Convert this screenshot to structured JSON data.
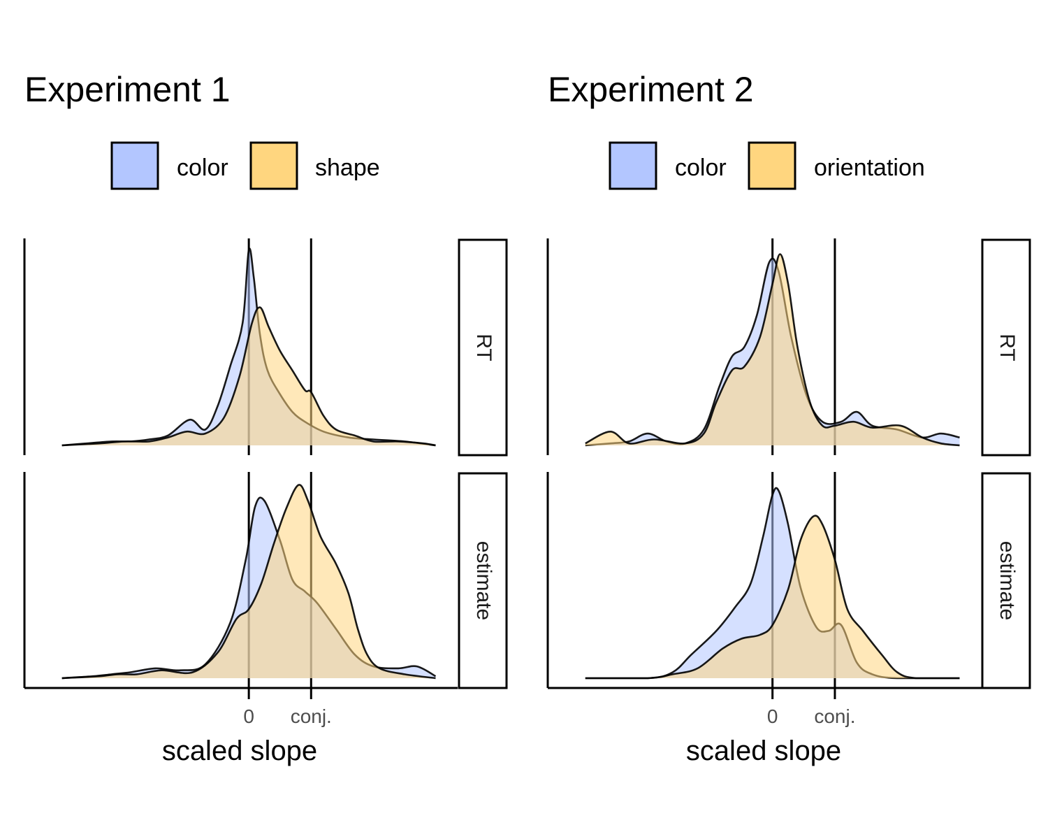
{
  "colors": {
    "color": "#b3c6ff",
    "feature": "#ffd67f",
    "outline": "#000000"
  },
  "chart_data": [
    {
      "type": "area",
      "title": "Experiment 1",
      "xlabel": "scaled slope",
      "xticks": [
        {
          "value": 0,
          "label": "0"
        },
        {
          "value": 1,
          "label": "conj."
        }
      ],
      "xlim": [
        -3.3,
        3.05
      ],
      "legend": {
        "position": "top",
        "entries": [
          "color",
          "shape"
        ]
      },
      "facets": [
        {
          "label": "RT",
          "ylim": [
            0,
            1.0
          ],
          "series": [
            {
              "name": "color",
              "color": "#b3c6ff",
              "points": [
                [
                  -3.0,
                  0
                ],
                [
                  -2.6,
                  0.01
                ],
                [
                  -2.2,
                  0.02
                ],
                [
                  -1.9,
                  0.02
                ],
                [
                  -1.6,
                  0.03
                ],
                [
                  -1.3,
                  0.05
                ],
                [
                  -0.95,
                  0.13
                ],
                [
                  -0.7,
                  0.08
                ],
                [
                  -0.5,
                  0.2
                ],
                [
                  -0.3,
                  0.4
                ],
                [
                  -0.1,
                  0.62
                ],
                [
                  0.0,
                  0.99
                ],
                [
                  0.08,
                  0.85
                ],
                [
                  0.18,
                  0.56
                ],
                [
                  0.3,
                  0.38
                ],
                [
                  0.5,
                  0.26
                ],
                [
                  0.7,
                  0.17
                ],
                [
                  0.9,
                  0.12
                ],
                [
                  1.2,
                  0.07
                ],
                [
                  1.6,
                  0.04
                ],
                [
                  2.0,
                  0.03
                ],
                [
                  2.5,
                  0.02
                ],
                [
                  3.0,
                  0
                ]
              ]
            },
            {
              "name": "shape",
              "color": "#ffd67f",
              "points": [
                [
                  -3.0,
                  0
                ],
                [
                  -2.4,
                  0.01
                ],
                [
                  -2.0,
                  0.02
                ],
                [
                  -1.6,
                  0.02
                ],
                [
                  -1.3,
                  0.04
                ],
                [
                  -1.0,
                  0.07
                ],
                [
                  -0.7,
                  0.06
                ],
                [
                  -0.4,
                  0.14
                ],
                [
                  -0.15,
                  0.35
                ],
                [
                  0.05,
                  0.62
                ],
                [
                  0.18,
                  0.7
                ],
                [
                  0.32,
                  0.6
                ],
                [
                  0.5,
                  0.48
                ],
                [
                  0.7,
                  0.38
                ],
                [
                  0.9,
                  0.28
                ],
                [
                  1.0,
                  0.27
                ],
                [
                  1.2,
                  0.15
                ],
                [
                  1.4,
                  0.08
                ],
                [
                  1.7,
                  0.05
                ],
                [
                  2.0,
                  0.02
                ],
                [
                  2.4,
                  0.02
                ],
                [
                  2.8,
                  0.01
                ],
                [
                  3.0,
                  0
                ]
              ]
            }
          ]
        },
        {
          "label": "estimate",
          "ylim": [
            0,
            1.0
          ],
          "series": [
            {
              "name": "color",
              "color": "#b3c6ff",
              "points": [
                [
                  -3.0,
                  0
                ],
                [
                  -2.5,
                  0.01
                ],
                [
                  -2.2,
                  0.02
                ],
                [
                  -1.9,
                  0.03
                ],
                [
                  -1.5,
                  0.05
                ],
                [
                  -1.1,
                  0.04
                ],
                [
                  -0.7,
                  0.07
                ],
                [
                  -0.3,
                  0.28
                ],
                [
                  -0.05,
                  0.6
                ],
                [
                  0.1,
                  0.87
                ],
                [
                  0.25,
                  0.9
                ],
                [
                  0.5,
                  0.7
                ],
                [
                  0.7,
                  0.5
                ],
                [
                  0.9,
                  0.44
                ],
                [
                  1.1,
                  0.38
                ],
                [
                  1.4,
                  0.25
                ],
                [
                  1.7,
                  0.12
                ],
                [
                  2.0,
                  0.06
                ],
                [
                  2.4,
                  0.05
                ],
                [
                  2.7,
                  0.06
                ],
                [
                  3.0,
                  0.01
                ]
              ]
            },
            {
              "name": "shape",
              "color": "#ffd67f",
              "points": [
                [
                  -3.0,
                  0
                ],
                [
                  -2.4,
                  0.01
                ],
                [
                  -2.1,
                  0.02
                ],
                [
                  -1.8,
                  0.02
                ],
                [
                  -1.4,
                  0.04
                ],
                [
                  -0.9,
                  0.03
                ],
                [
                  -0.5,
                  0.13
                ],
                [
                  -0.2,
                  0.3
                ],
                [
                  0.0,
                  0.35
                ],
                [
                  0.2,
                  0.48
                ],
                [
                  0.4,
                  0.68
                ],
                [
                  0.6,
                  0.86
                ],
                [
                  0.8,
                  0.98
                ],
                [
                  0.95,
                  0.9
                ],
                [
                  1.15,
                  0.72
                ],
                [
                  1.4,
                  0.58
                ],
                [
                  1.6,
                  0.43
                ],
                [
                  1.75,
                  0.25
                ],
                [
                  1.9,
                  0.12
                ],
                [
                  2.1,
                  0.05
                ],
                [
                  2.5,
                  0.02
                ],
                [
                  3.0,
                  0
                ]
              ]
            }
          ]
        }
      ]
    },
    {
      "type": "area",
      "title": "Experiment 2",
      "xlabel": "scaled slope",
      "xticks": [
        {
          "value": 0,
          "label": "0"
        },
        {
          "value": 1,
          "label": "conj."
        }
      ],
      "xlim": [
        -3.3,
        3.05
      ],
      "legend": {
        "position": "top",
        "entries": [
          "color",
          "orientation"
        ]
      },
      "facets": [
        {
          "label": "RT",
          "ylim": [
            0,
            1.0
          ],
          "series": [
            {
              "name": "color",
              "color": "#b3c6ff",
              "points": [
                [
                  -3.0,
                  0
                ],
                [
                  -2.6,
                  0.01
                ],
                [
                  -2.3,
                  0.02
                ],
                [
                  -2.0,
                  0.06
                ],
                [
                  -1.7,
                  0.02
                ],
                [
                  -1.4,
                  0.01
                ],
                [
                  -1.1,
                  0.08
                ],
                [
                  -0.85,
                  0.3
                ],
                [
                  -0.65,
                  0.45
                ],
                [
                  -0.45,
                  0.5
                ],
                [
                  -0.25,
                  0.66
                ],
                [
                  -0.05,
                  0.93
                ],
                [
                  0.1,
                  0.88
                ],
                [
                  0.3,
                  0.55
                ],
                [
                  0.55,
                  0.25
                ],
                [
                  0.8,
                  0.12
                ],
                [
                  1.1,
                  0.12
                ],
                [
                  1.35,
                  0.17
                ],
                [
                  1.6,
                  0.1
                ],
                [
                  2.0,
                  0.08
                ],
                [
                  2.4,
                  0.04
                ],
                [
                  2.7,
                  0.06
                ],
                [
                  3.0,
                  0.04
                ]
              ]
            },
            {
              "name": "orientation",
              "color": "#ffd67f",
              "points": [
                [
                  -3.0,
                  0.01
                ],
                [
                  -2.6,
                  0.07
                ],
                [
                  -2.3,
                  0.01
                ],
                [
                  -1.9,
                  0.03
                ],
                [
                  -1.4,
                  0.01
                ],
                [
                  -1.1,
                  0.06
                ],
                [
                  -0.9,
                  0.22
                ],
                [
                  -0.65,
                  0.38
                ],
                [
                  -0.45,
                  0.4
                ],
                [
                  -0.2,
                  0.55
                ],
                [
                  0.0,
                  0.82
                ],
                [
                  0.12,
                  0.97
                ],
                [
                  0.25,
                  0.82
                ],
                [
                  0.4,
                  0.5
                ],
                [
                  0.6,
                  0.22
                ],
                [
                  0.8,
                  0.1
                ],
                [
                  1.0,
                  0.1
                ],
                [
                  1.3,
                  0.12
                ],
                [
                  1.6,
                  0.09
                ],
                [
                  2.05,
                  0.1
                ],
                [
                  2.4,
                  0.04
                ],
                [
                  2.7,
                  0.01
                ],
                [
                  3.0,
                  0
                ]
              ]
            }
          ]
        },
        {
          "label": "estimate",
          "ylim": [
            0,
            1.0
          ],
          "series": [
            {
              "name": "color",
              "color": "#b3c6ff",
              "points": [
                [
                  -3.0,
                  0
                ],
                [
                  -2.0,
                  0
                ],
                [
                  -1.6,
                  0.03
                ],
                [
                  -1.3,
                  0.12
                ],
                [
                  -0.9,
                  0.24
                ],
                [
                  -0.6,
                  0.36
                ],
                [
                  -0.35,
                  0.48
                ],
                [
                  -0.15,
                  0.72
                ],
                [
                  0.0,
                  0.93
                ],
                [
                  0.1,
                  0.95
                ],
                [
                  0.25,
                  0.78
                ],
                [
                  0.45,
                  0.46
                ],
                [
                  0.7,
                  0.26
                ],
                [
                  0.9,
                  0.24
                ],
                [
                  1.1,
                  0.27
                ],
                [
                  1.35,
                  0.08
                ],
                [
                  1.6,
                  0.02
                ],
                [
                  2.0,
                  0
                ],
                [
                  3.0,
                  0
                ]
              ]
            },
            {
              "name": "orientation",
              "color": "#ffd67f",
              "points": [
                [
                  -3.0,
                  0
                ],
                [
                  -2.0,
                  0
                ],
                [
                  -1.6,
                  0.02
                ],
                [
                  -1.2,
                  0.05
                ],
                [
                  -0.8,
                  0.15
                ],
                [
                  -0.5,
                  0.2
                ],
                [
                  -0.2,
                  0.22
                ],
                [
                  0.0,
                  0.27
                ],
                [
                  0.25,
                  0.45
                ],
                [
                  0.45,
                  0.7
                ],
                [
                  0.65,
                  0.82
                ],
                [
                  0.8,
                  0.78
                ],
                [
                  1.0,
                  0.6
                ],
                [
                  1.2,
                  0.35
                ],
                [
                  1.45,
                  0.24
                ],
                [
                  1.75,
                  0.12
                ],
                [
                  2.0,
                  0.03
                ],
                [
                  2.3,
                  0
                ],
                [
                  3.0,
                  0
                ]
              ]
            }
          ]
        }
      ]
    }
  ]
}
